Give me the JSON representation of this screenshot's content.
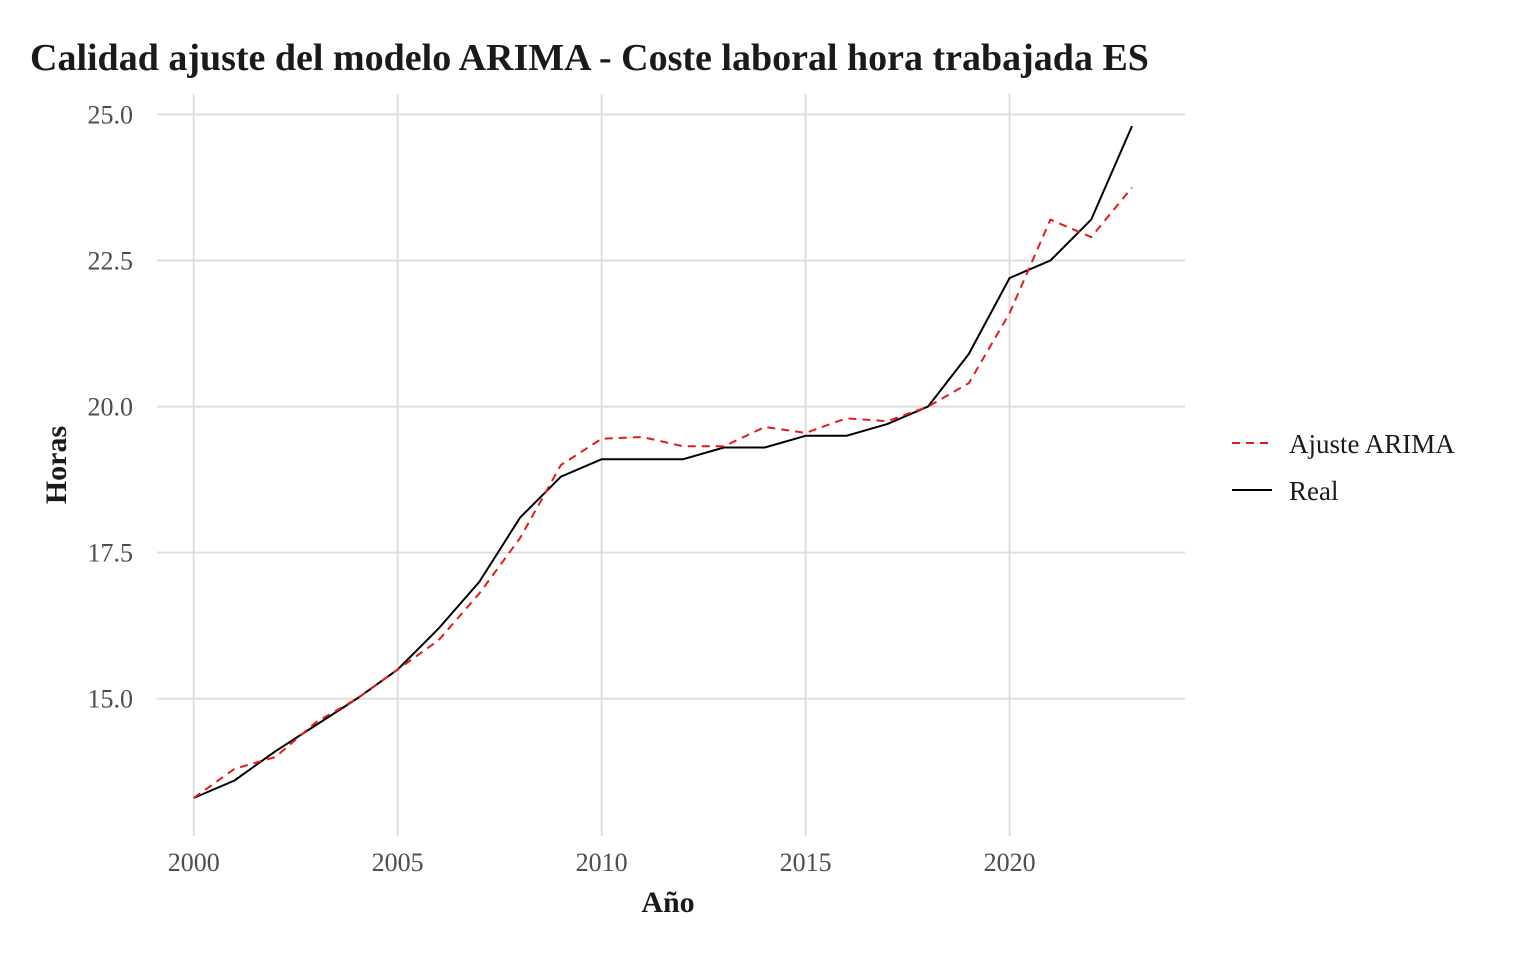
{
  "chart_data": {
    "type": "line",
    "title": "Calidad ajuste del modelo ARIMA - Coste laboral hora trabajada ES",
    "xlabel": "Año",
    "ylabel": "Horas",
    "xlim": [
      1999.1,
      2024.3
    ],
    "ylim": [
      12.65,
      25.35
    ],
    "x_ticks": [
      2000,
      2005,
      2010,
      2015,
      2020
    ],
    "x_tick_labels": [
      "2000",
      "2005",
      "2010",
      "2015",
      "2020"
    ],
    "y_ticks": [
      15.0,
      17.5,
      20.0,
      22.5,
      25.0
    ],
    "y_tick_labels": [
      "15.0",
      "17.5",
      "20.0",
      "22.5",
      "25.0"
    ],
    "grid": true,
    "legend_position": "right",
    "x": [
      2000,
      2001,
      2002,
      2003,
      2004,
      2005,
      2006,
      2007,
      2008,
      2009,
      2010,
      2011,
      2012,
      2013,
      2014,
      2015,
      2016,
      2017,
      2018,
      2019,
      2020,
      2021,
      2022,
      2023
    ],
    "series": [
      {
        "name": "Ajuste ARIMA",
        "color": "#e41a1c",
        "dash": "dashed",
        "values": [
          13.3,
          13.8,
          14.0,
          14.6,
          15.0,
          15.5,
          16.0,
          16.8,
          17.75,
          19.0,
          19.45,
          19.48,
          19.32,
          19.32,
          19.65,
          19.55,
          19.8,
          19.75,
          20.0,
          20.4,
          21.6,
          23.2,
          22.9,
          23.75
        ]
      },
      {
        "name": "Real",
        "color": "#000000",
        "dash": "solid",
        "values": [
          13.3,
          13.6,
          14.1,
          14.55,
          15.0,
          15.5,
          16.2,
          17.0,
          18.1,
          18.8,
          19.1,
          19.1,
          19.1,
          19.3,
          19.3,
          19.5,
          19.5,
          19.7,
          20.0,
          20.9,
          22.2,
          22.5,
          23.2,
          24.8
        ]
      }
    ]
  }
}
